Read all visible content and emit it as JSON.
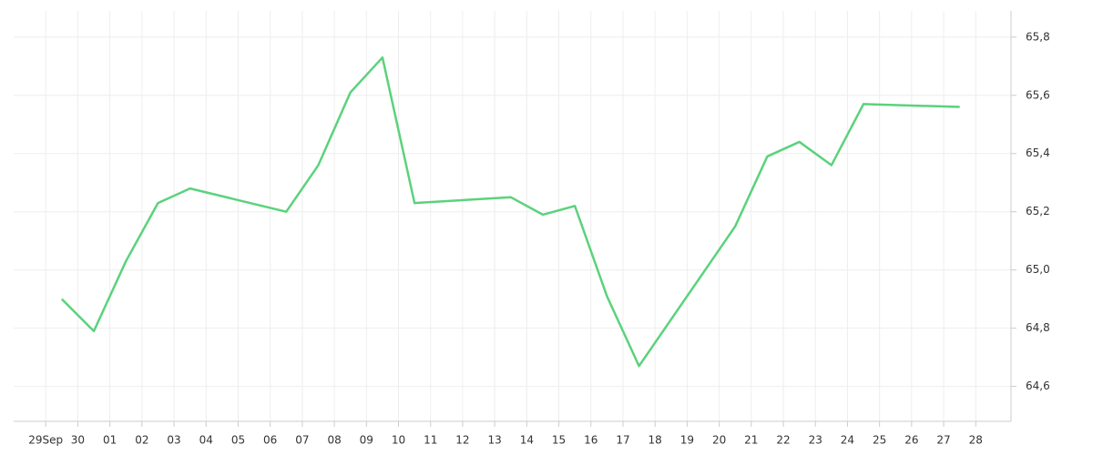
{
  "chart_data": {
    "type": "line",
    "x": [
      0.5,
      1.5,
      2.5,
      3.5,
      4.5,
      7.5,
      8.5,
      9.5,
      10.5,
      11.5,
      14.5,
      15.5,
      16.5,
      17.5,
      18.5,
      21.5,
      22.5,
      23.5,
      24.5,
      25.5,
      28.5
    ],
    "series": [
      {
        "color": "#5bd27c",
        "values": [
          64.9,
          64.79,
          65.03,
          65.23,
          65.28,
          65.2,
          65.36,
          65.61,
          65.73,
          65.23,
          65.25,
          65.19,
          65.22,
          64.91,
          64.67,
          65.15,
          65.39,
          65.44,
          65.36,
          65.57,
          65.56
        ]
      }
    ],
    "xlim": [
      -1,
      30.1
    ],
    "xticks": [
      {
        "value": 0,
        "label": "29Sep"
      },
      {
        "value": 1,
        "label": "30"
      },
      {
        "value": 2,
        "label": "01"
      },
      {
        "value": 3,
        "label": "02"
      },
      {
        "value": 4,
        "label": "03"
      },
      {
        "value": 5,
        "label": "04"
      },
      {
        "value": 6,
        "label": "05"
      },
      {
        "value": 7,
        "label": "06"
      },
      {
        "value": 8,
        "label": "07"
      },
      {
        "value": 9,
        "label": "08"
      },
      {
        "value": 10,
        "label": "09"
      },
      {
        "value": 11,
        "label": "10"
      },
      {
        "value": 12,
        "label": "11"
      },
      {
        "value": 13,
        "label": "12"
      },
      {
        "value": 14,
        "label": "13"
      },
      {
        "value": 15,
        "label": "14"
      },
      {
        "value": 16,
        "label": "15"
      },
      {
        "value": 17,
        "label": "16"
      },
      {
        "value": 18,
        "label": "17"
      },
      {
        "value": 19,
        "label": "18"
      },
      {
        "value": 20,
        "label": "19"
      },
      {
        "value": 21,
        "label": "20"
      },
      {
        "value": 22,
        "label": "21"
      },
      {
        "value": 23,
        "label": "22"
      },
      {
        "value": 24,
        "label": "23"
      },
      {
        "value": 25,
        "label": "24"
      },
      {
        "value": 26,
        "label": "25"
      },
      {
        "value": 27,
        "label": "26"
      },
      {
        "value": 28,
        "label": "27"
      },
      {
        "value": 29,
        "label": "28"
      }
    ],
    "ylim": [
      64.48,
      65.89
    ],
    "yticks": [
      {
        "value": 64.6,
        "label": "64,6"
      },
      {
        "value": 64.8,
        "label": "64,8"
      },
      {
        "value": 65.0,
        "label": "65,0"
      },
      {
        "value": 65.2,
        "label": "65,2"
      },
      {
        "value": 65.4,
        "label": "65,4"
      },
      {
        "value": 65.6,
        "label": "65,6"
      },
      {
        "value": 65.8,
        "label": "65,8"
      }
    ],
    "grid": true
  }
}
